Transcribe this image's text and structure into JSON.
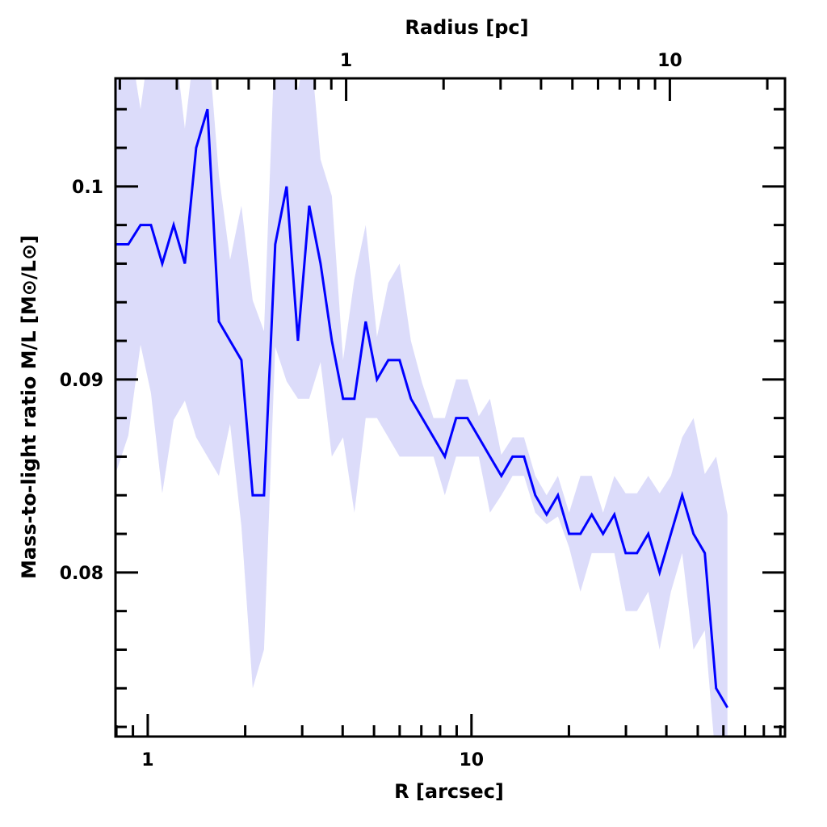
{
  "chart_data": {
    "type": "line",
    "title": "",
    "xlabel": "R [arcsec]",
    "ylabel": "Mass-to-light ratio M/L [M⊙/L⊙]",
    "top_xlabel": "Radius [pc]",
    "xscale": "log",
    "xlim": [
      0.795,
      93
    ],
    "ylim": [
      0.0715,
      0.1056
    ],
    "x_ticks": [
      {
        "value": 1,
        "label": "1"
      },
      {
        "value": 10,
        "label": "10"
      }
    ],
    "top_ticks": [
      {
        "value": 1,
        "label": "1"
      },
      {
        "value": 10,
        "label": "10"
      }
    ],
    "top_axis_arcsec_per_pc": 4.1,
    "y_ticks": [
      {
        "value": 0.08,
        "label": "0.08"
      },
      {
        "value": 0.09,
        "label": "0.09"
      },
      {
        "value": 0.1,
        "label": "0.1"
      }
    ],
    "grid": false,
    "colors": {
      "line": "#0000ff",
      "band": "#dcdcfa",
      "axis": "#000000"
    },
    "series": [
      {
        "name": "M/L",
        "x": [
          0.795,
          0.871,
          0.95,
          1.023,
          1.109,
          1.202,
          1.302,
          1.411,
          1.529,
          1.658,
          1.796,
          1.947,
          2.11,
          2.286,
          2.477,
          2.685,
          2.91,
          3.154,
          3.418,
          3.704,
          4.013,
          4.349,
          4.713,
          5.108,
          5.535,
          5.999,
          6.501,
          7.045,
          7.635,
          8.273,
          8.966,
          9.716,
          10.53,
          11.41,
          12.37,
          13.4,
          14.53,
          15.74,
          17.06,
          18.49,
          20.03,
          21.71,
          23.53,
          25.5,
          27.63,
          29.95,
          32.45,
          35.17,
          38.11,
          41.3,
          44.76,
          48.51,
          52.56,
          56.96,
          61.73
        ],
        "values": [
          0.097,
          0.097,
          0.098,
          0.098,
          0.096,
          0.098,
          0.096,
          0.102,
          0.104,
          0.093,
          0.092,
          0.091,
          0.084,
          0.084,
          0.097,
          0.1,
          0.092,
          0.099,
          0.096,
          0.092,
          0.089,
          0.089,
          0.093,
          0.09,
          0.091,
          0.091,
          0.089,
          0.088,
          0.087,
          0.086,
          0.088,
          0.088,
          0.087,
          0.086,
          0.085,
          0.086,
          0.086,
          0.084,
          0.083,
          0.084,
          0.082,
          0.082,
          0.083,
          0.082,
          0.083,
          0.081,
          0.081,
          0.082,
          0.08,
          0.082,
          0.084,
          0.082,
          0.081,
          0.074,
          0.073
        ],
        "lower": [
          0.0851,
          0.0871,
          0.0918,
          0.0893,
          0.0841,
          0.0879,
          0.0889,
          0.087,
          0.086,
          0.085,
          0.0877,
          0.0824,
          0.074,
          0.076,
          0.0917,
          0.0899,
          0.089,
          0.089,
          0.0909,
          0.086,
          0.087,
          0.0831,
          0.088,
          0.088,
          0.087,
          0.086,
          0.086,
          0.086,
          0.086,
          0.084,
          0.086,
          0.086,
          0.086,
          0.0831,
          0.084,
          0.085,
          0.085,
          0.0831,
          0.0825,
          0.0829,
          0.0813,
          0.079,
          0.081,
          0.081,
          0.081,
          0.078,
          0.078,
          0.079,
          0.076,
          0.079,
          0.081,
          0.076,
          0.077,
          0.07,
          0.07
        ],
        "upper": [
          0.108,
          0.108,
          0.104,
          0.108,
          0.108,
          0.108,
          0.103,
          0.108,
          0.108,
          0.1006,
          0.0962,
          0.099,
          0.0941,
          0.0925,
          0.108,
          0.108,
          0.105,
          0.108,
          0.1014,
          0.0995,
          0.091,
          0.0952,
          0.098,
          0.0922,
          0.095,
          0.096,
          0.092,
          0.0898,
          0.088,
          0.088,
          0.09,
          0.09,
          0.0881,
          0.089,
          0.0861,
          0.087,
          0.087,
          0.085,
          0.084,
          0.085,
          0.0831,
          0.085,
          0.085,
          0.0831,
          0.085,
          0.0841,
          0.0841,
          0.085,
          0.0841,
          0.085,
          0.087,
          0.088,
          0.0851,
          0.086,
          0.083
        ]
      }
    ]
  }
}
